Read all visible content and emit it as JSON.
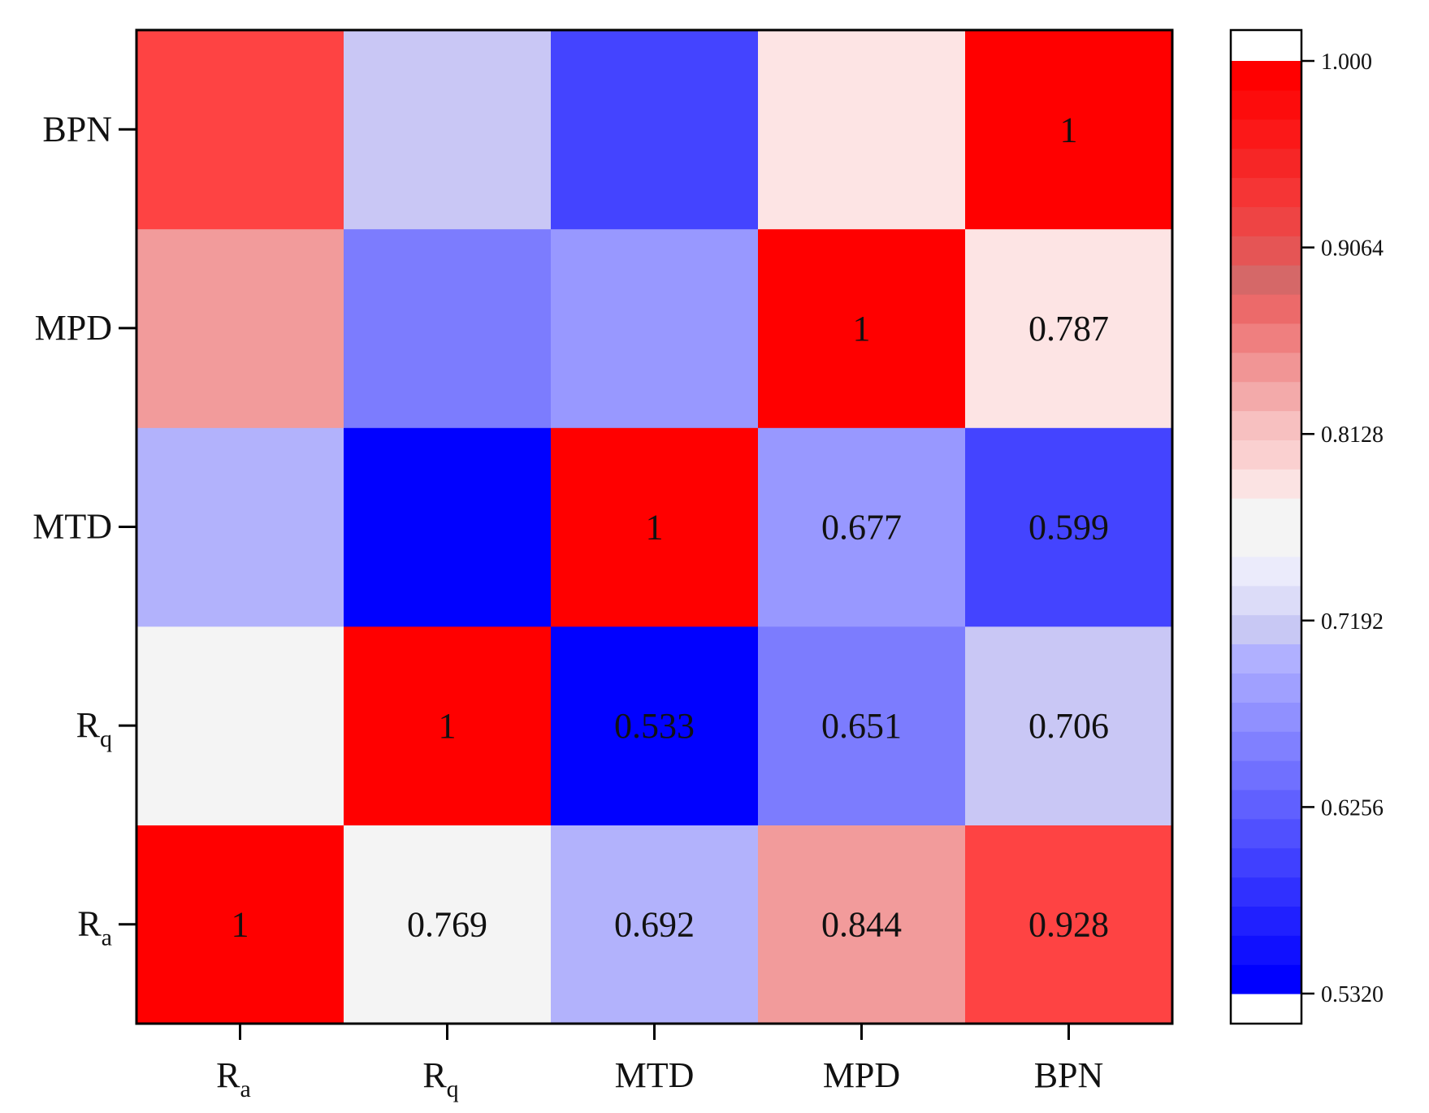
{
  "chart_data": {
    "type": "heatmap",
    "title": "",
    "xlabel": "",
    "ylabel": "",
    "x_labels": [
      {
        "main": "R",
        "sub": "a"
      },
      {
        "main": "R",
        "sub": "q"
      },
      {
        "main": "MTD",
        "sub": ""
      },
      {
        "main": "MPD",
        "sub": ""
      },
      {
        "main": "BPN",
        "sub": ""
      }
    ],
    "y_labels_bottom_to_top": [
      {
        "main": "R",
        "sub": "a"
      },
      {
        "main": "R",
        "sub": "q"
      },
      {
        "main": "MTD",
        "sub": ""
      },
      {
        "main": "MPD",
        "sub": ""
      },
      {
        "main": "BPN",
        "sub": ""
      }
    ],
    "matrix": [
      [
        1,
        0.769,
        0.692,
        0.844,
        0.928
      ],
      [
        0.769,
        1,
        0.533,
        0.651,
        0.706
      ],
      [
        0.692,
        0.533,
        1,
        0.677,
        0.599
      ],
      [
        0.844,
        0.651,
        0.677,
        1,
        0.787
      ],
      [
        0.928,
        0.706,
        0.599,
        0.787,
        1
      ]
    ],
    "cell_labels": [
      {
        "row": 0,
        "col": 0,
        "text": "1"
      },
      {
        "row": 0,
        "col": 1,
        "text": "0.769"
      },
      {
        "row": 0,
        "col": 2,
        "text": "0.692"
      },
      {
        "row": 0,
        "col": 3,
        "text": "0.844"
      },
      {
        "row": 0,
        "col": 4,
        "text": "0.928"
      },
      {
        "row": 1,
        "col": 1,
        "text": "1"
      },
      {
        "row": 1,
        "col": 2,
        "text": "0.533"
      },
      {
        "row": 1,
        "col": 3,
        "text": "0.651"
      },
      {
        "row": 1,
        "col": 4,
        "text": "0.706"
      },
      {
        "row": 2,
        "col": 2,
        "text": "1"
      },
      {
        "row": 2,
        "col": 3,
        "text": "0.677"
      },
      {
        "row": 2,
        "col": 4,
        "text": "0.599"
      },
      {
        "row": 3,
        "col": 3,
        "text": "1"
      },
      {
        "row": 3,
        "col": 4,
        "text": "0.787"
      },
      {
        "row": 4,
        "col": 4,
        "text": "1"
      }
    ],
    "colorbar": {
      "min": 0.532,
      "max": 1.0,
      "tick_labels": [
        "0.5320",
        "0.6256",
        "0.7192",
        "0.8128",
        "0.9064",
        "1.000"
      ],
      "band_colors_bottom_to_top": [
        "#0000ff",
        "#1010ff",
        "#2020ff",
        "#3030ff",
        "#4040ff",
        "#5050ff",
        "#6060ff",
        "#7070ff",
        "#8080ff",
        "#9090ff",
        "#a0a0ff",
        "#b0b0ff",
        "#c8c8f4",
        "#dcdcf8",
        "#ebebfb",
        "#f4f4f4",
        "#f4f4f4",
        "#fbe3e3",
        "#fad0d0",
        "#f7c0c0",
        "#f3aaaa",
        "#f19595",
        "#ef7f7f",
        "#ec6a6a",
        "#d56868",
        "#e55555",
        "#ee4444",
        "#f53535",
        "#f62626",
        "#fb1818",
        "#fd0c0c",
        "#ff0000"
      ]
    },
    "colors": {
      "stops": [
        {
          "v": 0.532,
          "c": "#0000ff"
        },
        {
          "v": 0.6,
          "c": "#4545ff"
        },
        {
          "v": 0.65,
          "c": "#7b7bfe"
        },
        {
          "v": 0.68,
          "c": "#9b9bff"
        },
        {
          "v": 0.692,
          "c": "#b2b2fc"
        },
        {
          "v": 0.706,
          "c": "#c9c7f5"
        },
        {
          "v": 0.769,
          "c": "#f4f4f4"
        },
        {
          "v": 0.787,
          "c": "#fde4e4"
        },
        {
          "v": 0.844,
          "c": "#f29b9b"
        },
        {
          "v": 0.928,
          "c": "#fe4343"
        },
        {
          "v": 1.0,
          "c": "#ff0000"
        }
      ]
    }
  }
}
